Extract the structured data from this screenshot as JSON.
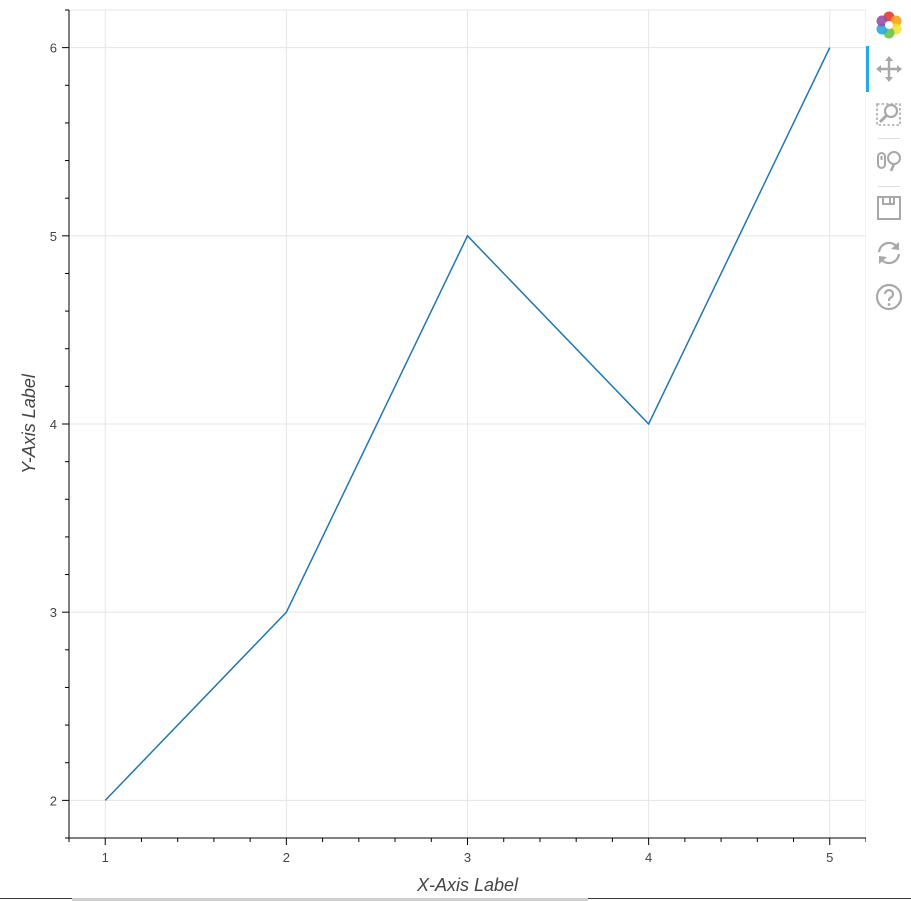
{
  "chart_data": {
    "type": "line",
    "x": [
      1,
      2,
      3,
      4,
      5
    ],
    "series": [
      {
        "values": [
          2,
          3,
          5,
          4,
          6
        ],
        "color": "#1f77b4"
      }
    ],
    "xlabel": "X-Axis Label",
    "ylabel": "Y-Axis Label",
    "xlim": [
      0.8,
      5.2
    ],
    "ylim": [
      1.8,
      6.2
    ],
    "x_ticks": [
      "1",
      "2",
      "3",
      "4",
      "5"
    ],
    "y_ticks": [
      "2",
      "3",
      "4",
      "5",
      "6"
    ],
    "grid": true
  },
  "toolbar": {
    "tools": [
      {
        "name": "bokeh-logo",
        "icon": "bokeh-logo-icon",
        "active": false
      },
      {
        "name": "pan",
        "icon": "pan-icon",
        "active": true
      },
      {
        "name": "box-zoom",
        "icon": "box-zoom-icon",
        "active": false
      },
      {
        "name": "wheel-zoom",
        "icon": "wheel-zoom-icon",
        "active": false
      },
      {
        "name": "save",
        "icon": "save-icon",
        "active": false
      },
      {
        "name": "reset",
        "icon": "reset-icon",
        "active": false
      },
      {
        "name": "help",
        "icon": "help-icon",
        "active": false
      }
    ],
    "icon_color": "#a8a8a8",
    "active_color": "#26aae1"
  }
}
